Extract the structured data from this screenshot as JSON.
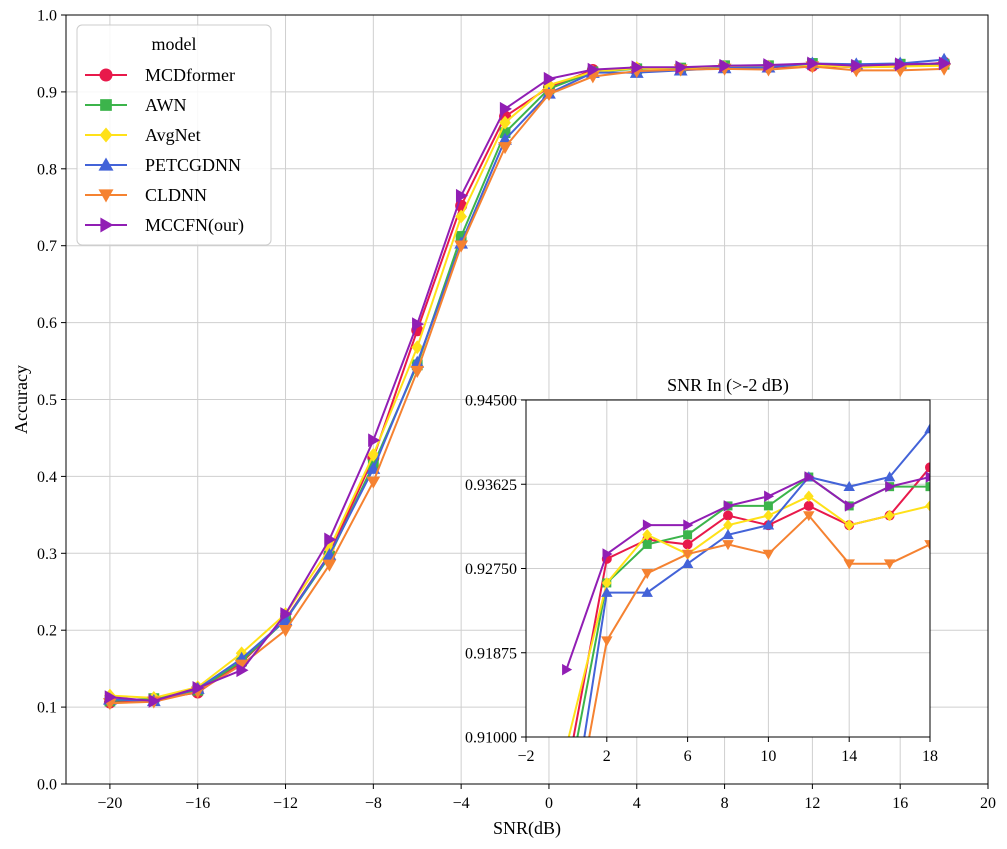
{
  "chart_data": [
    {
      "id": "main",
      "type": "line",
      "xlabel": "SNR(dB)",
      "ylabel": "Accuracy",
      "xlim": [
        -22,
        20
      ],
      "ylim": [
        0.0,
        1.0
      ],
      "xticks": [
        -20,
        -16,
        -12,
        -8,
        -4,
        0,
        4,
        8,
        12,
        16,
        20
      ],
      "yticks": [
        0.0,
        0.1,
        0.2,
        0.3,
        0.4,
        0.5,
        0.6,
        0.7,
        0.8,
        0.9,
        1.0
      ],
      "xtick_labels": [
        "−20",
        "−16",
        "−12",
        "−8",
        "−4",
        "0",
        "4",
        "8",
        "12",
        "16",
        "20"
      ],
      "ytick_labels": [
        "0.0",
        "0.1",
        "0.2",
        "0.3",
        "0.4",
        "0.5",
        "0.6",
        "0.7",
        "0.8",
        "0.9",
        "1.0"
      ],
      "grid": true,
      "legend": {
        "title": "model",
        "position": "top-left"
      },
      "x": [
        -20,
        -18,
        -16,
        -14,
        -12,
        -10,
        -8,
        -6,
        -4,
        -2,
        0,
        2,
        4,
        6,
        8,
        10,
        12,
        14,
        16,
        18
      ],
      "series": [
        {
          "name": "MCDformer",
          "color": "#e8194b",
          "marker": "circle",
          "values": [
            0.106,
            0.11,
            0.119,
            0.158,
            0.214,
            0.299,
            0.424,
            0.59,
            0.752,
            0.868,
            0.906,
            0.9285,
            0.9305,
            0.93,
            0.933,
            0.932,
            0.934,
            0.932,
            0.933,
            0.938
          ]
        },
        {
          "name": "AWN",
          "color": "#3cb44b",
          "marker": "square",
          "values": [
            0.108,
            0.111,
            0.122,
            0.16,
            0.213,
            0.296,
            0.415,
            0.545,
            0.712,
            0.847,
            0.904,
            0.926,
            0.93,
            0.931,
            0.934,
            0.934,
            0.937,
            0.934,
            0.936,
            0.936
          ]
        },
        {
          "name": "AvgNet",
          "color": "#ffe119",
          "marker": "diamond",
          "values": [
            0.115,
            0.112,
            0.126,
            0.17,
            0.221,
            0.306,
            0.428,
            0.568,
            0.738,
            0.86,
            0.909,
            0.926,
            0.931,
            0.929,
            0.932,
            0.933,
            0.935,
            0.932,
            0.933,
            0.934
          ]
        },
        {
          "name": "PETCGDNN",
          "color": "#4363d8",
          "marker": "triangle-up",
          "values": [
            0.11,
            0.108,
            0.124,
            0.163,
            0.213,
            0.298,
            0.41,
            0.548,
            0.703,
            0.838,
            0.898,
            0.925,
            0.925,
            0.928,
            0.931,
            0.932,
            0.937,
            0.936,
            0.937,
            0.942
          ]
        },
        {
          "name": "CLDNN",
          "color": "#f58231",
          "marker": "triangle-down",
          "values": [
            0.105,
            0.107,
            0.12,
            0.155,
            0.2,
            0.285,
            0.393,
            0.537,
            0.7,
            0.828,
            0.897,
            0.92,
            0.927,
            0.929,
            0.93,
            0.929,
            0.933,
            0.928,
            0.928,
            0.93
          ]
        },
        {
          "name": "MCCFN(our)",
          "color": "#911eb4",
          "marker": "triangle-right",
          "values": [
            0.113,
            0.108,
            0.125,
            0.148,
            0.221,
            0.318,
            0.447,
            0.598,
            0.765,
            0.878,
            0.917,
            0.929,
            0.932,
            0.932,
            0.934,
            0.935,
            0.937,
            0.934,
            0.936,
            0.937
          ]
        }
      ]
    },
    {
      "id": "inset",
      "type": "line",
      "title": "SNR In (>-2 dB)",
      "xlim": [
        -2,
        18
      ],
      "ylim": [
        0.91,
        0.945
      ],
      "xticks": [
        -2,
        2,
        6,
        10,
        14,
        18
      ],
      "yticks": [
        0.91,
        0.91875,
        0.9275,
        0.93625,
        0.945
      ],
      "xtick_labels": [
        "−2",
        "2",
        "6",
        "10",
        "14",
        "18"
      ],
      "ytick_labels": [
        "0.91000",
        "0.91875",
        "0.92750",
        "0.93625",
        "0.94500"
      ],
      "grid": true,
      "x": [
        0,
        2,
        4,
        6,
        8,
        10,
        12,
        14,
        16,
        18
      ],
      "series": [
        {
          "name": "MCDformer",
          "color": "#e8194b",
          "marker": "circle",
          "values": [
            0.906,
            0.9285,
            0.9305,
            0.93,
            0.933,
            0.932,
            0.934,
            0.932,
            0.933,
            0.938
          ]
        },
        {
          "name": "AWN",
          "color": "#3cb44b",
          "marker": "square",
          "values": [
            0.904,
            0.926,
            0.93,
            0.931,
            0.934,
            0.934,
            0.937,
            0.934,
            0.936,
            0.936
          ]
        },
        {
          "name": "AvgNet",
          "color": "#ffe119",
          "marker": "diamond",
          "values": [
            0.909,
            0.926,
            0.931,
            0.929,
            0.932,
            0.933,
            0.935,
            0.932,
            0.933,
            0.934
          ]
        },
        {
          "name": "PETCGDNN",
          "color": "#4363d8",
          "marker": "triangle-up",
          "values": [
            0.898,
            0.925,
            0.925,
            0.928,
            0.931,
            0.932,
            0.937,
            0.936,
            0.937,
            0.942
          ]
        },
        {
          "name": "CLDNN",
          "color": "#f58231",
          "marker": "triangle-down",
          "values": [
            0.897,
            0.92,
            0.927,
            0.929,
            0.93,
            0.929,
            0.933,
            0.928,
            0.928,
            0.93
          ]
        },
        {
          "name": "MCCFN(our)",
          "color": "#911eb4",
          "marker": "triangle-right",
          "values": [
            0.917,
            0.929,
            0.932,
            0.932,
            0.934,
            0.935,
            0.937,
            0.934,
            0.936,
            0.937
          ]
        }
      ]
    }
  ]
}
